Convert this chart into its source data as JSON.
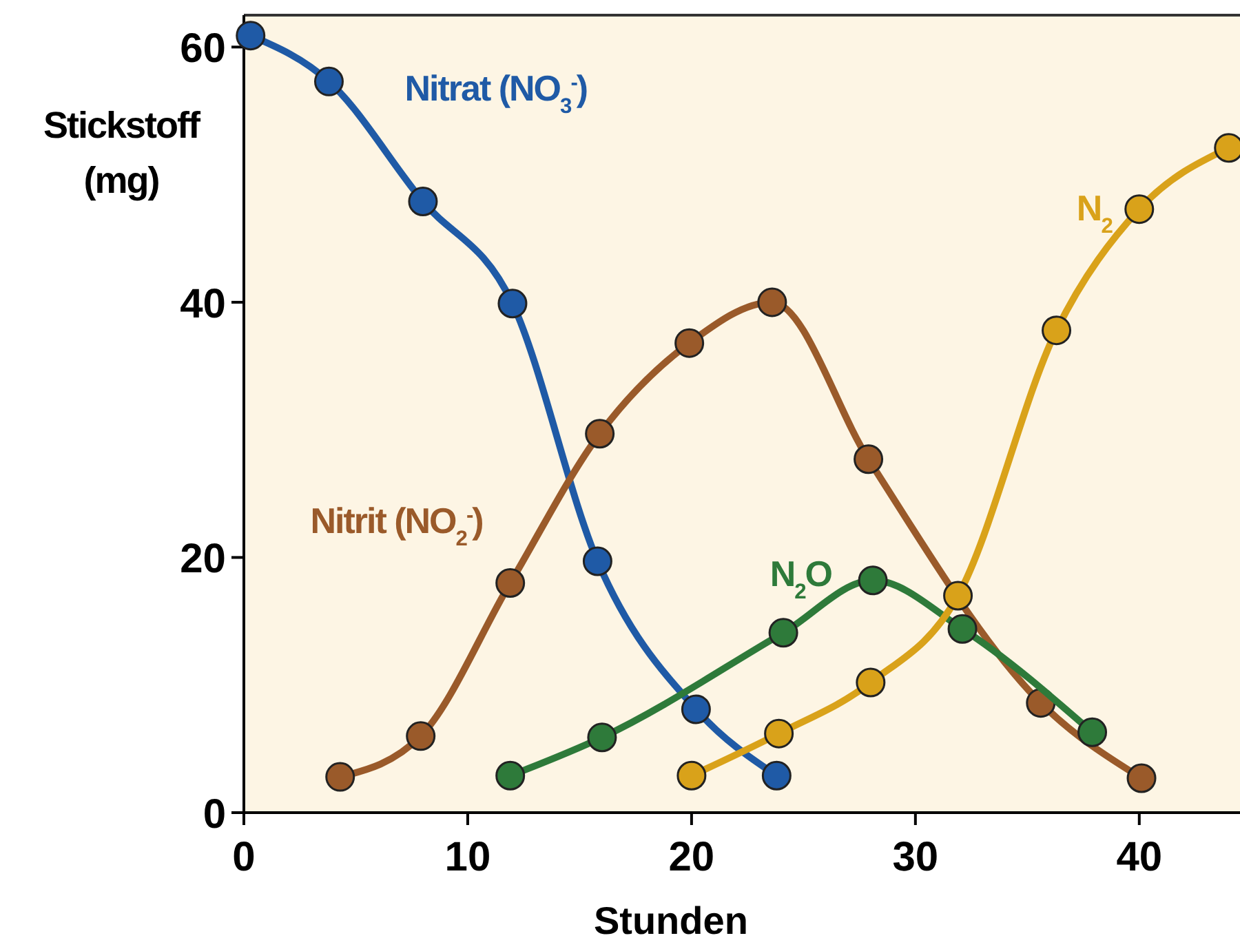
{
  "chart_data": {
    "type": "line",
    "xlabel": "Stunden",
    "ylabel": "Stickstoff (mg)",
    "xlim": [
      0,
      44.5
    ],
    "xticks": [
      0,
      10,
      20,
      30,
      40
    ],
    "ylim": [
      0,
      62.5
    ],
    "yticks": [
      0,
      20,
      40,
      60
    ],
    "grid": false,
    "marker": "circle",
    "line_style": "solid",
    "series": [
      {
        "name": "Nitrat (NO$_{3}$$^{-}$)",
        "color": "#1f5aa6",
        "x": [
          0.3,
          3.8,
          8.0,
          12.0,
          15.8,
          20.2,
          23.8
        ],
        "values": [
          60.9,
          57.3,
          47.9,
          39.9,
          19.7,
          8.1,
          2.9
        ]
      },
      {
        "name": "Nitrit (NO$_{2}$$^{-}$)",
        "color": "#9a5a2a",
        "x": [
          4.3,
          7.9,
          11.9,
          15.9,
          19.9,
          23.6,
          27.9,
          35.6,
          40.1
        ],
        "values": [
          2.8,
          6.0,
          18.0,
          29.7,
          36.8,
          40.0,
          27.7,
          8.6,
          2.7
        ]
      },
      {
        "name": "N$_{2}$O",
        "color": "#2e7a3a",
        "x": [
          11.9,
          16.0,
          24.1,
          28.1,
          32.1,
          37.9
        ],
        "values": [
          2.9,
          5.9,
          14.1,
          18.2,
          14.4,
          6.3
        ]
      },
      {
        "name": "N$_{2}$",
        "color": "#d9a21a",
        "x": [
          20.0,
          23.9,
          28.0,
          31.9,
          36.3,
          40.0,
          44.0
        ],
        "values": [
          2.9,
          6.2,
          10.2,
          17.0,
          37.8,
          47.3,
          52.1
        ]
      }
    ]
  }
}
